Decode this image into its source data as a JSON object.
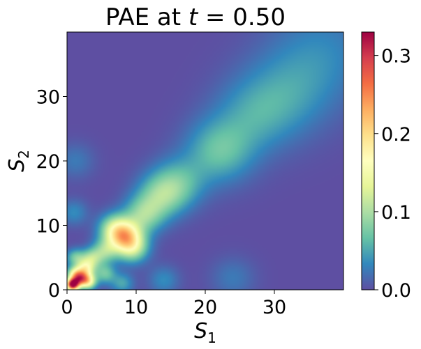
{
  "chart_data": {
    "type": "heatmap",
    "title_prefix": "PAE at ",
    "title_var": "t",
    "title_suffix": " = 0.50",
    "xlabel_base": "S",
    "xlabel_sub": "1",
    "ylabel_base": "S",
    "ylabel_sub": "2",
    "xlim": [
      0,
      40
    ],
    "ylim": [
      0,
      40
    ],
    "x_ticks": [
      0,
      10,
      20,
      30
    ],
    "y_ticks": [
      0,
      10,
      20,
      30
    ],
    "x_tick_labels": [
      "0",
      "10",
      "20",
      "30"
    ],
    "y_tick_labels": [
      "0",
      "10",
      "20",
      "30"
    ],
    "colorbar": {
      "range": [
        0,
        0.33
      ],
      "ticks": [
        0,
        0.1,
        0.2,
        0.3
      ],
      "tick_labels": [
        "0.0",
        "0.1",
        "0.2",
        "0.3"
      ],
      "colormap": "Spectral_r",
      "stops": [
        "#5e4fa2",
        "#3288bd",
        "#66c2a5",
        "#abdda4",
        "#e6f598",
        "#ffffbf",
        "#fee08b",
        "#fdae61",
        "#f46d43",
        "#d53e4f",
        "#9e0142"
      ]
    },
    "background_value": 0.0,
    "peaks": [
      {
        "x": 0.8,
        "y": 0.8,
        "value": 0.33
      },
      {
        "x": 1.8,
        "y": 1.8,
        "value": 0.18
      },
      {
        "x": 3.0,
        "y": 1.3,
        "value": 0.16
      },
      {
        "x": 2.6,
        "y": 3.2,
        "value": 0.13
      },
      {
        "x": 1.0,
        "y": 2.5,
        "value": 0.1
      },
      {
        "x": 1.2,
        "y": 5.0,
        "value": 0.07
      },
      {
        "x": 3.5,
        "y": 4.8,
        "value": 0.09
      },
      {
        "x": 5.5,
        "y": 2.5,
        "value": 0.07
      },
      {
        "x": 5.5,
        "y": 6.0,
        "value": 0.08
      },
      {
        "x": 8.3,
        "y": 8.3,
        "value": 0.16
      },
      {
        "x": 9.5,
        "y": 6.5,
        "value": 0.1
      },
      {
        "x": 6.8,
        "y": 9.5,
        "value": 0.09
      },
      {
        "x": 11.0,
        "y": 11.5,
        "value": 0.08
      },
      {
        "x": 13.5,
        "y": 14.5,
        "value": 0.07
      },
      {
        "x": 16.0,
        "y": 16.5,
        "value": 0.06
      },
      {
        "x": 22.0,
        "y": 21.5,
        "value": 0.065
      },
      {
        "x": 27.0,
        "y": 27.0,
        "value": 0.04
      },
      {
        "x": 32.0,
        "y": 30.5,
        "value": 0.035
      },
      {
        "x": 37.0,
        "y": 37.0,
        "value": 0.03
      },
      {
        "x": 8.0,
        "y": 1.0,
        "value": 0.05
      },
      {
        "x": 14.0,
        "y": 1.5,
        "value": 0.035
      },
      {
        "x": 24.0,
        "y": 1.8,
        "value": 0.025
      },
      {
        "x": 1.0,
        "y": 12.0,
        "value": 0.035
      },
      {
        "x": 1.2,
        "y": 20.0,
        "value": 0.025
      }
    ]
  }
}
